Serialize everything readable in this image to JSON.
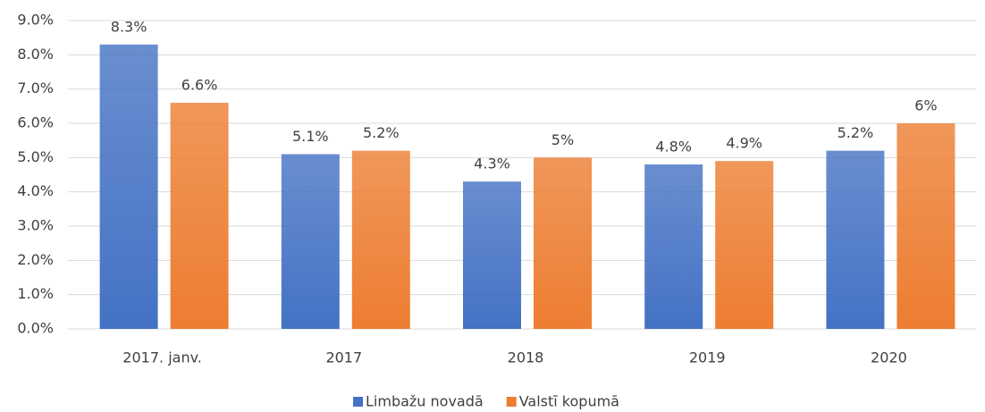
{
  "chart_data": {
    "type": "bar",
    "categories": [
      "2017. janv.",
      "2017",
      "2018",
      "2019",
      "2020"
    ],
    "series": [
      {
        "name": "Limbažu novadā",
        "color": "#4472c4",
        "values": [
          8.3,
          5.1,
          4.3,
          4.8,
          5.2
        ],
        "value_labels": [
          "8.3%",
          "5.1%",
          "4.3%",
          "4.8%",
          "5.2%"
        ]
      },
      {
        "name": "Valstī kopumā",
        "color": "#ed7d31",
        "values": [
          6.6,
          5.2,
          5,
          4.9,
          6
        ],
        "value_labels": [
          "6.6%",
          "5.2%",
          "5%",
          "4.9%",
          "6%"
        ]
      }
    ],
    "ylim": [
      0,
      9
    ],
    "yticks": [
      {
        "value": 0,
        "label": "0.0%"
      },
      {
        "value": 1,
        "label": "1.0%"
      },
      {
        "value": 2,
        "label": "2.0%"
      },
      {
        "value": 3,
        "label": "3.0%"
      },
      {
        "value": 4,
        "label": "4.0%"
      },
      {
        "value": 5,
        "label": "5.0%"
      },
      {
        "value": 6,
        "label": "6.0%"
      },
      {
        "value": 7,
        "label": "7.0%"
      },
      {
        "value": 8,
        "label": "8.0%"
      },
      {
        "value": 9,
        "label": "9.0%"
      }
    ],
    "grid": true,
    "legend": "bottom"
  }
}
